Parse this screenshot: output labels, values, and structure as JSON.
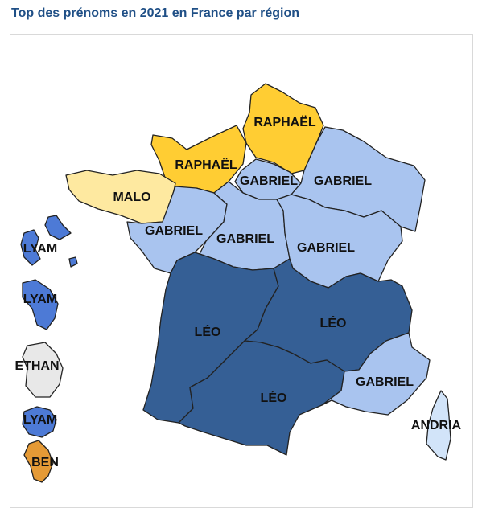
{
  "title": "Top des prénoms en 2021 en France par région",
  "colors": {
    "raphael": "#ffcd33",
    "malo": "#fee9a0",
    "gabriel": "#a9c4ef",
    "leo": "#355f95",
    "lyam": "#4d7ad6",
    "ethan": "#e8e8e8",
    "ben": "#e59a36",
    "andria": "#d2e4f9"
  },
  "regions": {
    "hauts_de_france": "RAPHAËL",
    "normandie": "RAPHAËL",
    "bretagne": "MALO",
    "ile_de_france": "GABRIEL",
    "grand_est": "GABRIEL",
    "pays_de_la_loire": "GABRIEL",
    "centre_val_de_loire": "GABRIEL",
    "bourgogne_franche_comte": "GABRIEL",
    "nouvelle_aquitaine": "LÉO",
    "auvergne_rhone_alpes": "LÉO",
    "occitanie": "LÉO",
    "provence_alpes_cote_dazur": "GABRIEL",
    "corse": "ANDRIA",
    "guadeloupe": "LYAM",
    "martinique": "LYAM",
    "guyane": "ETHAN",
    "la_reunion": "LYAM",
    "mayotte": "BEN"
  }
}
